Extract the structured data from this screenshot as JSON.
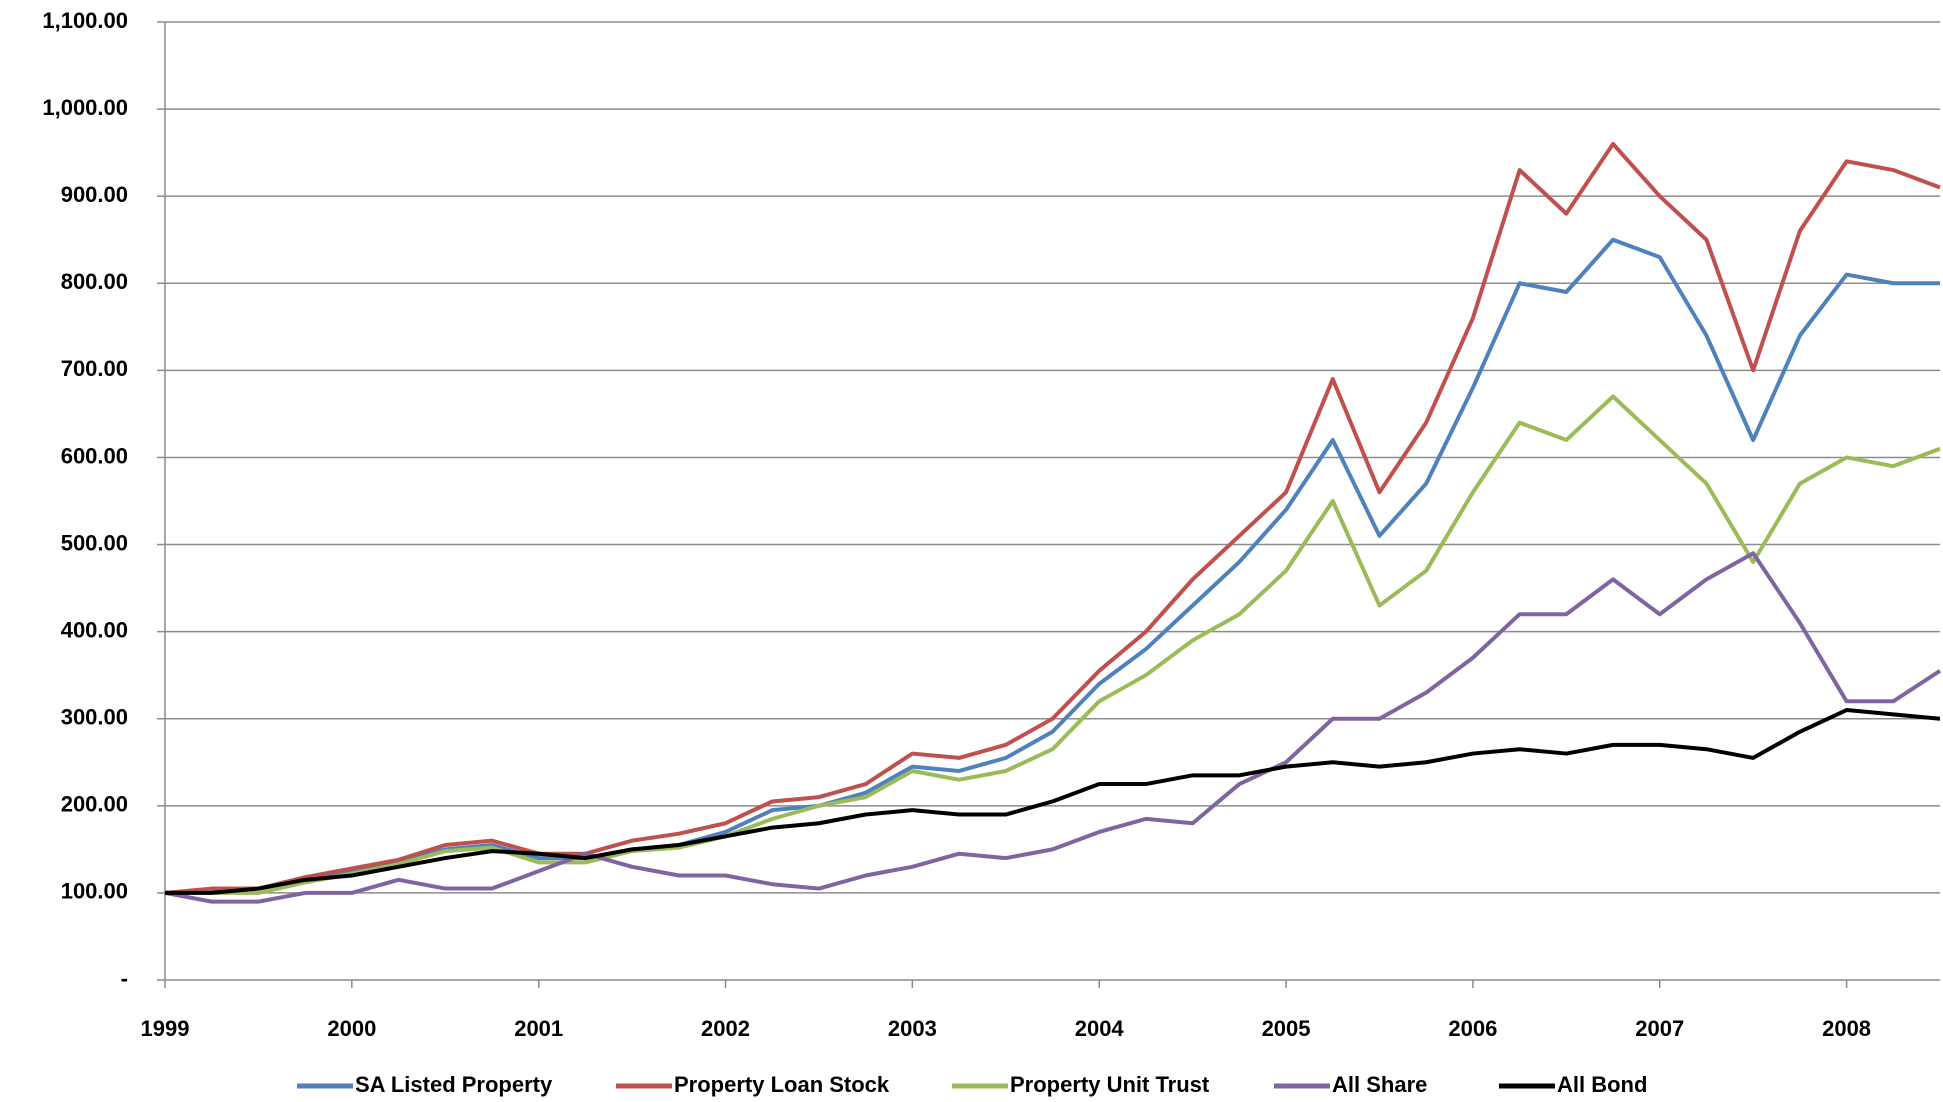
{
  "chart_data": {
    "type": "line",
    "x": [
      1999,
      1999.25,
      1999.5,
      1999.75,
      2000,
      2000.25,
      2000.5,
      2000.75,
      2001,
      2001.25,
      2001.5,
      2001.75,
      2002,
      2002.25,
      2002.5,
      2002.75,
      2003,
      2003.25,
      2003.5,
      2003.75,
      2004,
      2004.25,
      2004.5,
      2004.75,
      2005,
      2005.25,
      2005.5,
      2005.75,
      2006,
      2006.25,
      2006.5,
      2006.75,
      2007,
      2007.25,
      2007.5,
      2007.75,
      2008,
      2008.25,
      2008.5
    ],
    "series": [
      {
        "name": "SA Listed Property",
        "color": "#4f81bd",
        "values": [
          100,
          103,
          105,
          115,
          125,
          135,
          150,
          155,
          140,
          140,
          150,
          155,
          170,
          195,
          200,
          215,
          245,
          240,
          255,
          285,
          340,
          380,
          430,
          480,
          540,
          620,
          510,
          570,
          680,
          800,
          790,
          850,
          830,
          740,
          620,
          740,
          810,
          800,
          800
        ]
      },
      {
        "name": "Property Loan Stock",
        "color": "#c0504d",
        "values": [
          100,
          105,
          105,
          118,
          128,
          138,
          155,
          160,
          145,
          145,
          160,
          168,
          180,
          205,
          210,
          225,
          260,
          255,
          270,
          300,
          355,
          400,
          460,
          510,
          560,
          690,
          560,
          640,
          760,
          930,
          880,
          960,
          900,
          850,
          700,
          860,
          940,
          930,
          910
        ]
      },
      {
        "name": "Property Unit Trust",
        "color": "#9bbb59",
        "values": [
          100,
          100,
          100,
          112,
          122,
          133,
          148,
          152,
          135,
          135,
          148,
          152,
          165,
          185,
          200,
          210,
          240,
          230,
          240,
          265,
          320,
          350,
          390,
          420,
          470,
          550,
          430,
          470,
          560,
          640,
          620,
          670,
          620,
          570,
          480,
          570,
          600,
          590,
          610
        ]
      },
      {
        "name": "All Share",
        "color": "#8064a2",
        "values": [
          100,
          90,
          90,
          100,
          100,
          115,
          105,
          105,
          125,
          145,
          130,
          120,
          120,
          110,
          105,
          120,
          130,
          145,
          140,
          150,
          170,
          185,
          180,
          225,
          250,
          300,
          300,
          330,
          370,
          420,
          420,
          460,
          420,
          460,
          490,
          410,
          320,
          320,
          355
        ]
      },
      {
        "name": "All Bond",
        "color": "#000000",
        "values": [
          100,
          100,
          105,
          115,
          120,
          130,
          140,
          148,
          145,
          140,
          150,
          155,
          165,
          175,
          180,
          190,
          195,
          190,
          190,
          205,
          225,
          225,
          235,
          235,
          245,
          250,
          245,
          250,
          260,
          265,
          260,
          270,
          270,
          265,
          255,
          285,
          310,
          305,
          300
        ]
      }
    ],
    "xlim": [
      1999,
      2008.5
    ],
    "xticks": [
      1999,
      2000,
      2001,
      2002,
      2003,
      2004,
      2005,
      2006,
      2007,
      2008
    ],
    "ylim": [
      0,
      1100
    ],
    "yticks": [
      {
        "value": 0,
        "label": "-"
      },
      {
        "value": 100,
        "label": "100.00"
      },
      {
        "value": 200,
        "label": "200.00"
      },
      {
        "value": 300,
        "label": "300.00"
      },
      {
        "value": 400,
        "label": "400.00"
      },
      {
        "value": 500,
        "label": "500.00"
      },
      {
        "value": 600,
        "label": "600.00"
      },
      {
        "value": 700,
        "label": "700.00"
      },
      {
        "value": 800,
        "label": "800.00"
      },
      {
        "value": 900,
        "label": "900.00"
      },
      {
        "value": 1000,
        "label": "1,000.00"
      },
      {
        "value": 1100,
        "label": "1,100.00"
      }
    ],
    "grid": true,
    "legend": "bottom"
  }
}
